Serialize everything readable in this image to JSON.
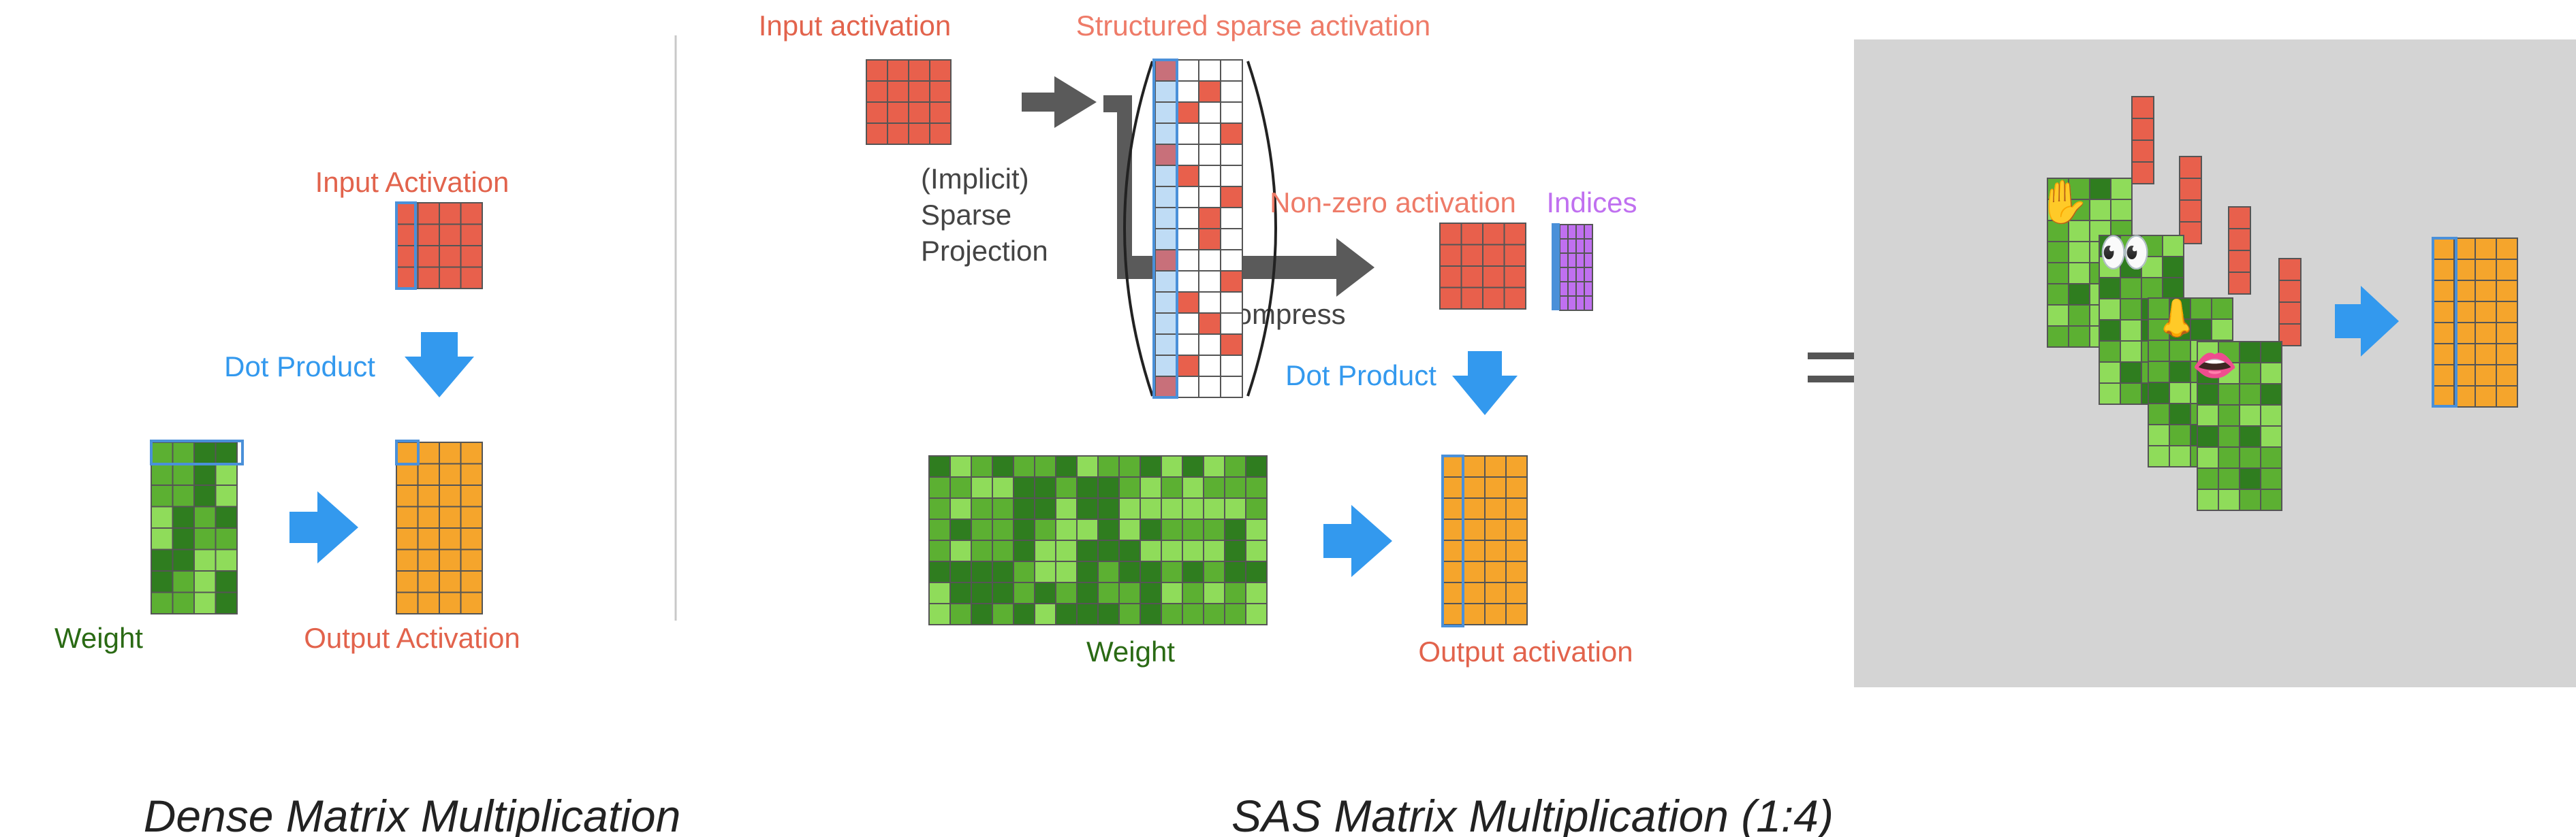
{
  "dense": {
    "input_label": "Input Activation",
    "dot_product_label": "Dot Product",
    "weight_label": "Weight",
    "output_label": "Output Activation",
    "caption": "Dense Matrix Multiplication"
  },
  "sas": {
    "input_label": "Input activation",
    "structured_label": "Structured sparse activation",
    "projection_label": [
      "(Implicit)",
      "Sparse",
      "Projection"
    ],
    "compress_label": "Compress",
    "nonzero_label": "Non-zero activation",
    "indices_label": "Indices",
    "dot_product_label": "Dot Product",
    "weight_label": "Weight",
    "output_label": "Output activation",
    "caption": "SAS Matrix Multiplication (1:4)"
  },
  "equals_sign": "=",
  "illustration": {
    "emoji": [
      "✋",
      "👀",
      "👃",
      "👄"
    ]
  },
  "colors": {
    "activation": "#e8604c",
    "activation_text": "#e2634c",
    "weight_dark": "#2f7d1f",
    "weight_mid": "#5cb032",
    "weight_light": "#8fdc5a",
    "weight_text": "#2a6a14",
    "output": "#f5a52c",
    "dot_blue": "#3399ee",
    "highlight_blue": "#4a90d9",
    "index_purple": "#c070f0",
    "column_light_blue": "#bfdcf5",
    "gray_arrow": "#5a5a5a",
    "panel_gray": "#d4d4d4"
  }
}
